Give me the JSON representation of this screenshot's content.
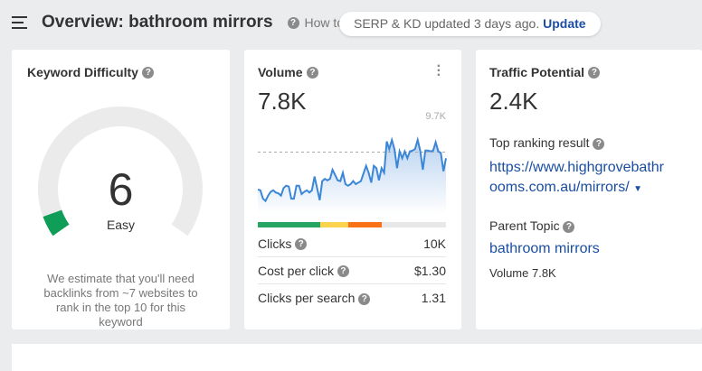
{
  "header": {
    "title": "Overview: bathroom mirrors",
    "howto": "How to u",
    "toast_text": "SERP & KD updated 3 days ago.",
    "toast_link": "Update"
  },
  "kd": {
    "title": "Keyword Difficulty",
    "value": "6",
    "label": "Easy",
    "level": 6,
    "color": "#0f9d58",
    "note": "We estimate that you'll need backlinks from ~7 websites to rank in the top 10 for this keyword"
  },
  "volume": {
    "title": "Volume",
    "value": "7.8K",
    "max_label": "9.7K",
    "reference_line": 8.1,
    "trend_k": [
      3.2,
      3.1,
      2.0,
      1.7,
      2.4,
      2.9,
      3.1,
      2.8,
      2.7,
      2.4,
      3.4,
      3.7,
      3.6,
      2.0,
      2.0,
      3.7,
      3.7,
      2.6,
      2.9,
      3.1,
      2.8,
      3.1,
      4.9,
      3.4,
      1.8,
      4.3,
      4.6,
      4.4,
      4.6,
      5.8,
      5.1,
      4.4,
      4.3,
      5.4,
      3.9,
      3.7,
      3.9,
      4.3,
      3.9,
      4.1,
      4.3,
      5.3,
      6.3,
      5.4,
      4.1,
      6.3,
      6.0,
      4.4,
      6.0,
      5.4,
      9.5,
      8.5,
      9.7,
      8.5,
      6.0,
      8.2,
      7.3,
      8.2,
      7.3,
      8.2,
      8.3,
      8.5,
      9.7,
      8.3,
      5.8,
      8.3,
      8.3,
      8.2,
      8.3,
      9.4,
      8.2,
      8.0,
      5.6,
      7.3
    ],
    "intent_bar": [
      {
        "color": "#27a563",
        "share": 33
      },
      {
        "color": "#fcd34d",
        "share": 15
      },
      {
        "color": "#f97316",
        "share": 18
      },
      {
        "color": "#e8e8e8",
        "share": 34
      }
    ],
    "rows": [
      {
        "label": "Clicks",
        "value": "10K"
      },
      {
        "label": "Cost per click",
        "value": "$1.30"
      },
      {
        "label": "Clicks per search",
        "value": "1.31"
      }
    ]
  },
  "traffic": {
    "title": "Traffic Potential",
    "value": "2.4K",
    "top_label": "Top ranking result",
    "top_url": "https://www.highgrovebathrooms.com.au/mirrors/",
    "parent_label": "Parent Topic",
    "parent_topic": "bathroom mirrors",
    "parent_volume": "Volume 7.8K"
  }
}
